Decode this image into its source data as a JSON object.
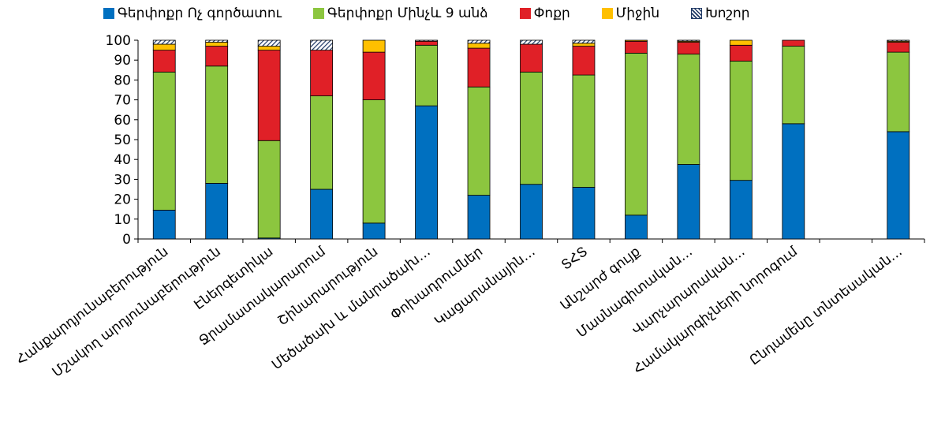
{
  "chart_data": {
    "type": "bar",
    "stacked": true,
    "title": "",
    "xlabel": "",
    "ylabel": "",
    "ylim": [
      0,
      100
    ],
    "yticks": [
      0,
      10,
      20,
      30,
      40,
      50,
      60,
      70,
      80,
      90,
      100
    ],
    "grid": false,
    "legend_position": "top",
    "categories": [
      "Հանքարդյունաբերություն",
      "Մշակող արդյունաբերություն",
      "Էներգետիկա",
      "Ջրամատակարարում",
      "Շինարարություն",
      "Մեծածախ և մանրածախ…",
      "Փոխադրումներ",
      "Կացարանային…",
      "ՏՀՏ",
      "Անշարժ գույք",
      "Մասնագիտական…",
      "Վարչարարական…",
      "Համակարգիչների նորոգում",
      "",
      "Ընդամենը տնտեսական…"
    ],
    "series": [
      {
        "name": "Գերփոքր Ոչ գործատու",
        "color": "#0070C0",
        "values": [
          14.5,
          28,
          0.5,
          25,
          8,
          67,
          22,
          27.5,
          26,
          12,
          37.5,
          29.5,
          58,
          0,
          54
        ]
      },
      {
        "name": "Գերփոքր Մինչև 9 անձ",
        "color": "#8CC63F",
        "values": [
          69.5,
          59,
          49,
          47,
          62,
          30.5,
          54.5,
          56.5,
          56.5,
          81.5,
          55.5,
          60,
          39,
          0,
          40
        ]
      },
      {
        "name": "Փոքր",
        "color": "#E02027",
        "values": [
          11,
          10,
          45.5,
          23,
          24,
          2,
          19.5,
          14,
          14.5,
          6,
          6,
          8,
          3,
          0,
          5
        ]
      },
      {
        "name": "Միջին",
        "color": "#FFC000",
        "values": [
          3,
          2,
          2,
          0,
          6,
          0,
          2.5,
          0,
          1.5,
          0.5,
          0.5,
          2.5,
          0,
          0,
          0.5
        ]
      },
      {
        "name": "Խոշոր",
        "color": "#1F3864",
        "pattern": "diagonal",
        "values": [
          2,
          1,
          3,
          5,
          0,
          0.5,
          1.5,
          2,
          1.5,
          0,
          0.5,
          0,
          0,
          0,
          0.5
        ]
      }
    ]
  }
}
